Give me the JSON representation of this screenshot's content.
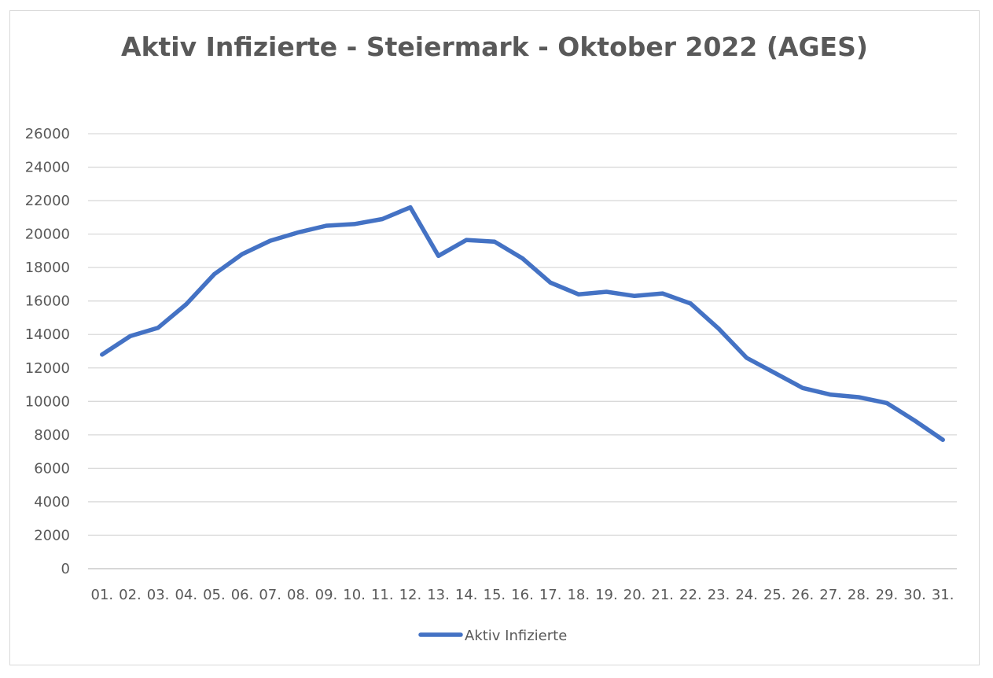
{
  "chart_data": {
    "type": "line",
    "title": "Aktiv Infizierte - Steiermark - Oktober 2022 (AGES)",
    "xlabel": "",
    "ylabel": "",
    "ylim": [
      0,
      26000
    ],
    "y_ticks": [
      0,
      2000,
      4000,
      6000,
      8000,
      10000,
      12000,
      14000,
      16000,
      18000,
      20000,
      22000,
      24000,
      26000
    ],
    "grid": true,
    "legend_position": "bottom",
    "categories": [
      "01.",
      "02.",
      "03.",
      "04.",
      "05.",
      "06.",
      "07.",
      "08.",
      "09.",
      "10.",
      "11.",
      "12.",
      "13.",
      "14.",
      "15.",
      "16.",
      "17.",
      "18.",
      "19.",
      "20.",
      "21.",
      "22.",
      "23.",
      "24.",
      "25.",
      "26.",
      "27.",
      "28.",
      "29.",
      "30.",
      "31."
    ],
    "series": [
      {
        "name": "Aktiv Infizierte",
        "color": "#4472c4",
        "values": [
          12800,
          13900,
          14400,
          15800,
          17600,
          18800,
          19600,
          20100,
          20500,
          20600,
          20900,
          21600,
          18700,
          19650,
          19550,
          18550,
          17100,
          16400,
          16550,
          16300,
          16450,
          15850,
          14350,
          12600,
          11700,
          10800,
          10400,
          10250,
          9900,
          8850,
          7700
        ]
      }
    ]
  }
}
